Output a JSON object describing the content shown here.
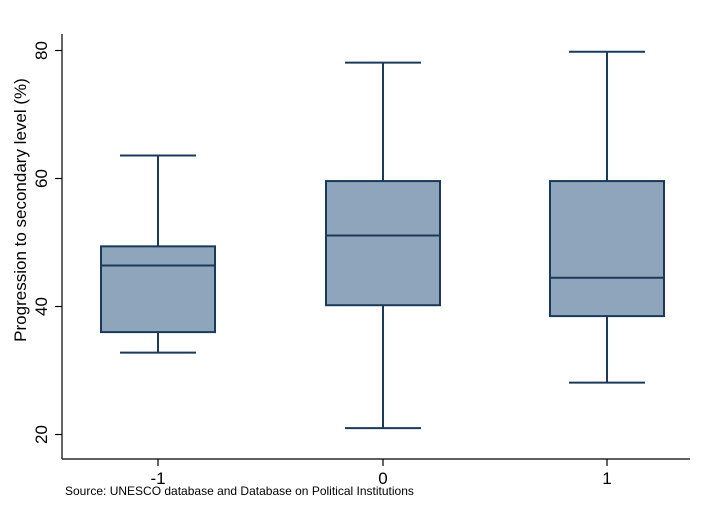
{
  "chart_data": {
    "type": "box",
    "title": "",
    "xlabel": "",
    "ylabel": "Progression to secondary level (%)",
    "categories": [
      "-1",
      "0",
      "1"
    ],
    "boxes": [
      {
        "category": "-1",
        "min": 32.8,
        "q1": 36.0,
        "median": 46.4,
        "q3": 49.4,
        "max": 63.6
      },
      {
        "category": "0",
        "min": 21.0,
        "q1": 40.2,
        "median": 51.1,
        "q3": 59.6,
        "max": 78.1
      },
      {
        "category": "1",
        "min": 28.1,
        "q1": 38.5,
        "median": 44.5,
        "q3": 59.6,
        "max": 79.8
      }
    ],
    "y_ticks": [
      20,
      40,
      60,
      80
    ],
    "y_tick_labels": [
      "20",
      "40",
      "60",
      "80"
    ],
    "ylim": [
      20,
      80
    ],
    "grid": false,
    "legend": "none",
    "note": "Source: UNESCO database and Database on Political Institutions",
    "colors": {
      "box_fill": "#8fa5bb",
      "box_stroke": "#1a3a5c",
      "axis": "#000000"
    }
  }
}
